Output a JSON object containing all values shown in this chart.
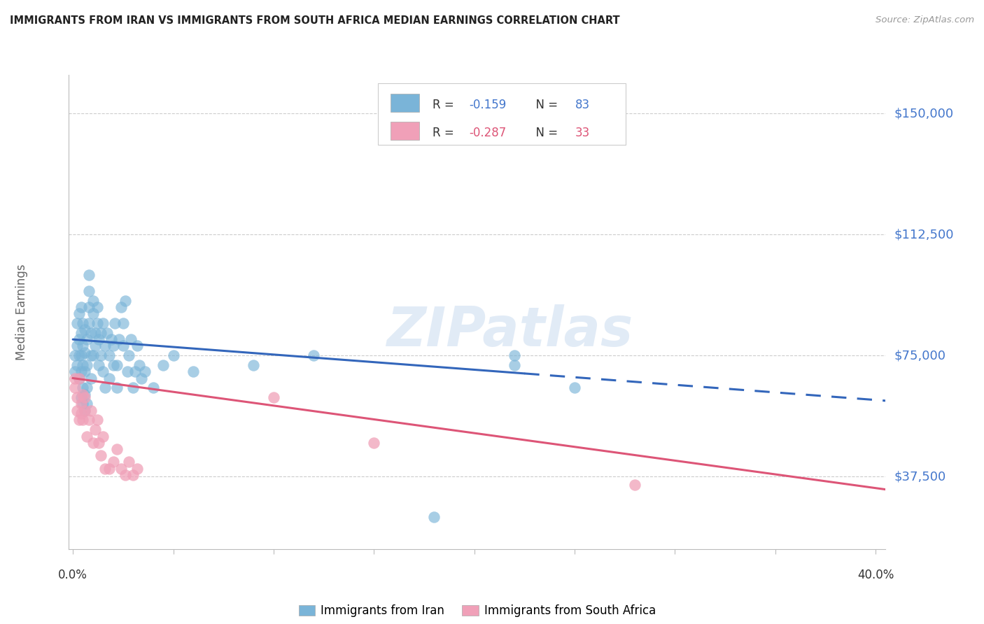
{
  "title": "IMMIGRANTS FROM IRAN VS IMMIGRANTS FROM SOUTH AFRICA MEDIAN EARNINGS CORRELATION CHART",
  "source": "Source: ZipAtlas.com",
  "ylabel": "Median Earnings",
  "ytick_values": [
    37500,
    75000,
    112500,
    150000
  ],
  "ytick_labels": [
    "$37,500",
    "$75,000",
    "$112,500",
    "$150,000"
  ],
  "ylim": [
    15000,
    162000
  ],
  "xlim": [
    -0.002,
    0.405
  ],
  "iran_color": "#7ab4d8",
  "sa_color": "#f0a0b8",
  "iran_line_color": "#3366bb",
  "sa_line_color": "#dd5577",
  "legend_label_iran": "Immigrants from Iran",
  "legend_label_sa": "Immigrants from South Africa",
  "R_iran": "-0.159",
  "N_iran": "83",
  "R_sa": "-0.287",
  "N_sa": "33",
  "iran_line_solid_end": 0.225,
  "iran_line_x0": 0.0,
  "iran_line_x1": 0.405,
  "iran_line_y0": 80000,
  "iran_line_y1": 61000,
  "sa_line_x0": 0.0,
  "sa_line_x1": 0.405,
  "sa_line_y0": 68000,
  "sa_line_y1": 33500,
  "watermark_text": "ZIPatlas",
  "grid_color": "#cccccc",
  "iran_x": [
    0.001,
    0.001,
    0.002,
    0.002,
    0.002,
    0.003,
    0.003,
    0.003,
    0.003,
    0.004,
    0.004,
    0.004,
    0.004,
    0.004,
    0.005,
    0.005,
    0.005,
    0.005,
    0.005,
    0.006,
    0.006,
    0.006,
    0.006,
    0.006,
    0.007,
    0.007,
    0.007,
    0.007,
    0.008,
    0.008,
    0.008,
    0.008,
    0.009,
    0.009,
    0.009,
    0.01,
    0.01,
    0.01,
    0.011,
    0.011,
    0.012,
    0.012,
    0.013,
    0.013,
    0.014,
    0.014,
    0.015,
    0.015,
    0.016,
    0.016,
    0.017,
    0.018,
    0.018,
    0.019,
    0.02,
    0.02,
    0.021,
    0.022,
    0.022,
    0.023,
    0.024,
    0.025,
    0.025,
    0.026,
    0.027,
    0.028,
    0.029,
    0.03,
    0.031,
    0.032,
    0.033,
    0.034,
    0.036,
    0.04,
    0.045,
    0.05,
    0.06,
    0.09,
    0.12,
    0.22,
    0.22,
    0.25,
    0.18
  ],
  "iran_y": [
    70000,
    75000,
    72000,
    78000,
    85000,
    68000,
    80000,
    88000,
    75000,
    62000,
    70000,
    75000,
    82000,
    90000,
    60000,
    65000,
    72000,
    78000,
    85000,
    58000,
    63000,
    70000,
    76000,
    83000,
    60000,
    65000,
    72000,
    80000,
    90000,
    95000,
    100000,
    85000,
    68000,
    75000,
    82000,
    88000,
    92000,
    75000,
    82000,
    78000,
    85000,
    90000,
    72000,
    80000,
    75000,
    82000,
    85000,
    70000,
    78000,
    65000,
    82000,
    75000,
    68000,
    80000,
    72000,
    78000,
    85000,
    65000,
    72000,
    80000,
    90000,
    78000,
    85000,
    92000,
    70000,
    75000,
    80000,
    65000,
    70000,
    78000,
    72000,
    68000,
    70000,
    65000,
    72000,
    75000,
    70000,
    72000,
    75000,
    75000,
    72000,
    65000,
    25000
  ],
  "sa_x": [
    0.001,
    0.001,
    0.002,
    0.002,
    0.003,
    0.003,
    0.004,
    0.004,
    0.005,
    0.005,
    0.006,
    0.006,
    0.007,
    0.008,
    0.009,
    0.01,
    0.011,
    0.012,
    0.013,
    0.014,
    0.015,
    0.016,
    0.018,
    0.02,
    0.022,
    0.024,
    0.026,
    0.028,
    0.03,
    0.032,
    0.1,
    0.15,
    0.28
  ],
  "sa_y": [
    65000,
    68000,
    58000,
    62000,
    55000,
    68000,
    60000,
    57000,
    63000,
    55000,
    58000,
    62000,
    50000,
    55000,
    58000,
    48000,
    52000,
    55000,
    48000,
    44000,
    50000,
    40000,
    40000,
    42000,
    46000,
    40000,
    38000,
    42000,
    38000,
    40000,
    62000,
    48000,
    35000
  ]
}
